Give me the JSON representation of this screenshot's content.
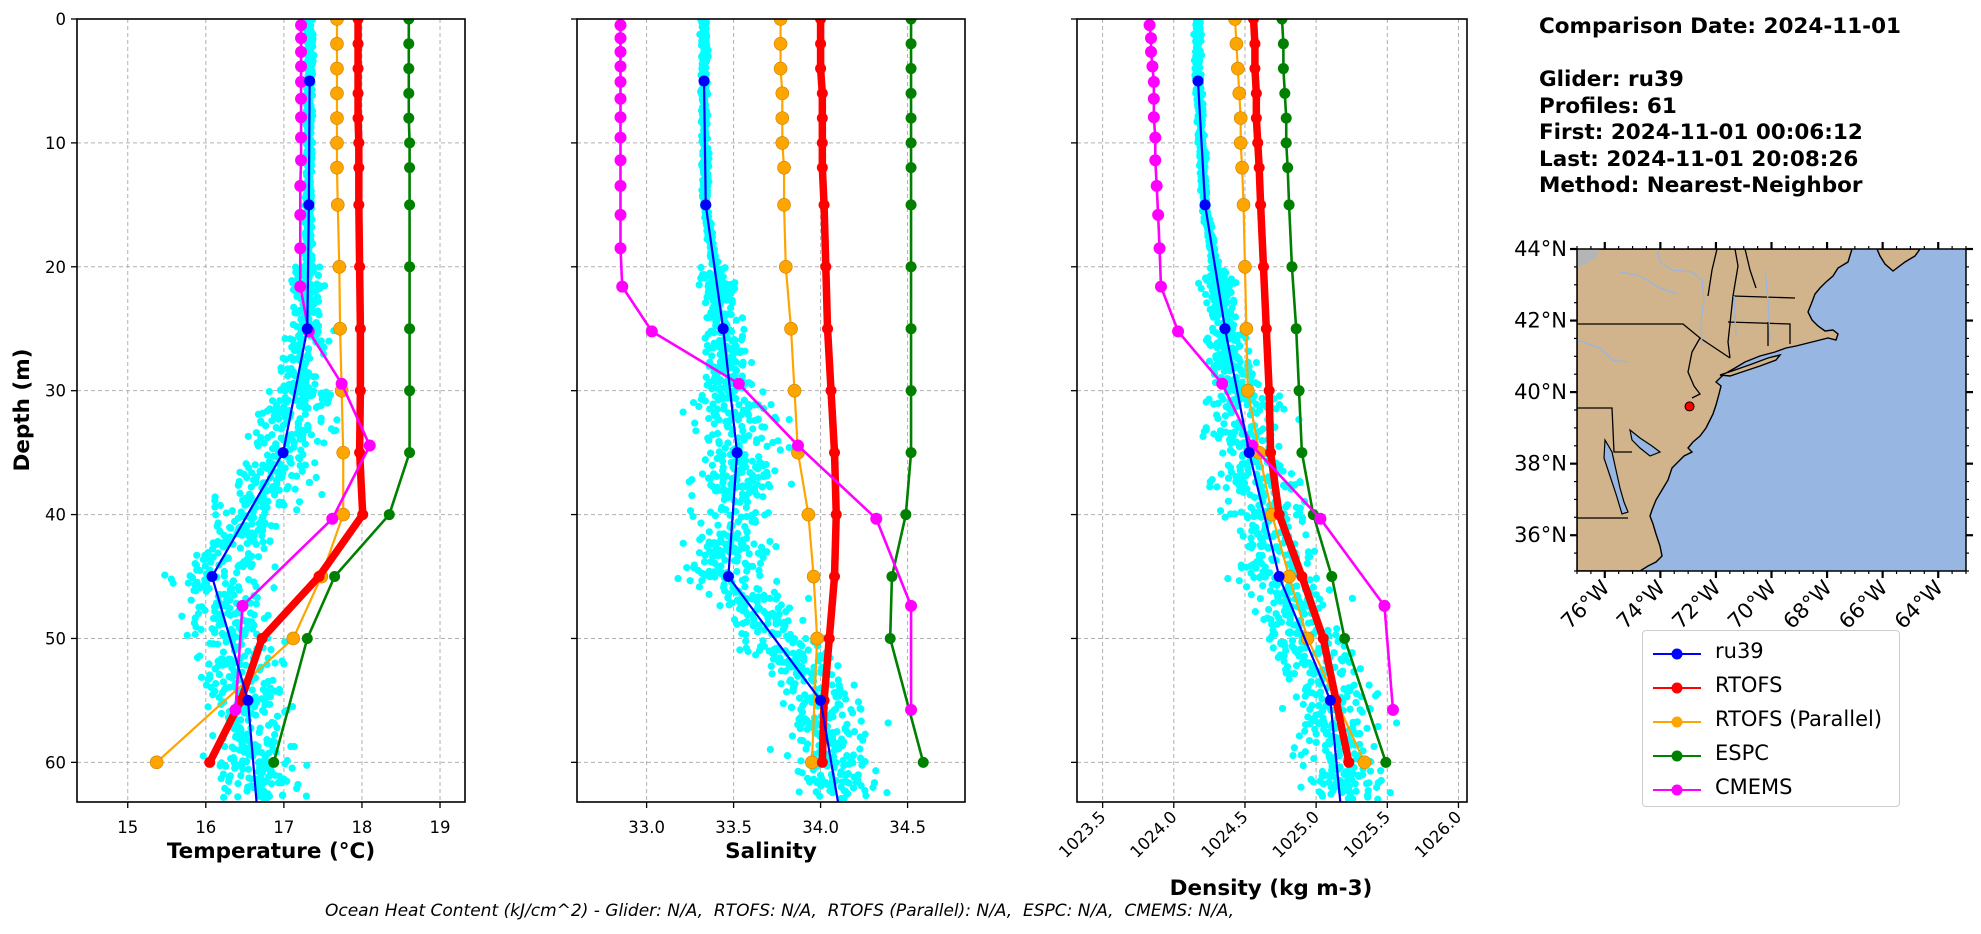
{
  "chart_data": [
    {
      "type": "line",
      "panel": "temperature",
      "xlabel": "Temperature (°C)",
      "ylabel": "Depth (m)",
      "xlim": [
        14.35,
        19.32
      ],
      "ylim": [
        63.2,
        0
      ],
      "xticks": [
        15,
        16,
        17,
        18,
        19
      ],
      "xtick_labels": [
        "15",
        "16",
        "17",
        "18",
        "19"
      ],
      "yticks": [
        0,
        10,
        20,
        30,
        40,
        50,
        60
      ],
      "ytick_labels": [
        "0",
        "10",
        "20",
        "30",
        "40",
        "50",
        "60"
      ],
      "grid": true,
      "series": [
        {
          "name": "ru39",
          "depth": [
            5,
            15,
            25,
            35,
            45,
            55,
            63.2
          ],
          "values": [
            17.33,
            17.32,
            17.3,
            16.99,
            16.08,
            16.54,
            16.65
          ],
          "marker_count": 6
        },
        {
          "name": "RTOFS",
          "depth": [
            0,
            2,
            4,
            6,
            8,
            10,
            12,
            15,
            20,
            25,
            30,
            35,
            40,
            45,
            50,
            55,
            60
          ],
          "values": [
            17.95,
            17.95,
            17.95,
            17.95,
            17.95,
            17.96,
            17.96,
            17.96,
            17.97,
            17.98,
            17.98,
            17.97,
            18.01,
            17.45,
            16.72,
            16.45,
            16.05
          ]
        },
        {
          "name": "RTOFS (Parallel)",
          "depth": [
            0,
            2,
            4,
            6,
            8,
            10,
            12,
            15,
            20,
            25,
            30,
            35,
            40,
            45,
            50,
            60
          ],
          "values": [
            17.68,
            17.68,
            17.68,
            17.68,
            17.68,
            17.68,
            17.68,
            17.69,
            17.71,
            17.72,
            17.74,
            17.76,
            17.76,
            17.48,
            17.12,
            15.37
          ]
        },
        {
          "name": "ESPC",
          "depth": [
            0,
            2,
            4,
            6,
            8,
            10,
            12,
            15,
            20,
            25,
            30,
            35,
            40,
            45,
            50,
            60
          ],
          "values": [
            18.6,
            18.6,
            18.6,
            18.6,
            18.6,
            18.61,
            18.61,
            18.61,
            18.61,
            18.61,
            18.61,
            18.61,
            18.35,
            17.65,
            17.3,
            16.87
          ]
        },
        {
          "name": "CMEMS",
          "depth": [
            0.49,
            1.54,
            2.65,
            3.82,
            5.08,
            6.44,
            7.93,
            9.57,
            11.4,
            13.47,
            15.81,
            18.5,
            21.6,
            25.21,
            29.44,
            34.43,
            40.34,
            47.37,
            55.76
          ],
          "values": [
            17.22,
            17.22,
            17.22,
            17.22,
            17.22,
            17.22,
            17.22,
            17.22,
            17.22,
            17.21,
            17.21,
            17.21,
            17.21,
            17.32,
            17.74,
            18.1,
            17.62,
            16.47,
            16.38
          ]
        }
      ],
      "scatter_name": "ru39 profiles (all)"
    },
    {
      "type": "line",
      "panel": "salinity",
      "xlabel": "Salinity",
      "ylabel": "",
      "xlim": [
        32.6,
        34.83
      ],
      "ylim": [
        63.2,
        0
      ],
      "xticks": [
        33.0,
        33.5,
        34.0,
        34.5
      ],
      "xtick_labels": [
        "33.0",
        "33.5",
        "34.0",
        "34.5"
      ],
      "yticks": [
        0,
        10,
        20,
        30,
        40,
        50,
        60
      ],
      "grid": true,
      "series": [
        {
          "name": "ru39",
          "depth": [
            5,
            15,
            25,
            35,
            45,
            55,
            63.2
          ],
          "values": [
            33.33,
            33.34,
            33.44,
            33.52,
            33.47,
            34.0,
            34.1
          ],
          "marker_count": 6
        },
        {
          "name": "RTOFS",
          "depth": [
            0,
            2,
            4,
            6,
            8,
            10,
            12,
            15,
            20,
            25,
            30,
            35,
            40,
            45,
            50,
            55,
            60
          ],
          "values": [
            34.0,
            34.0,
            34.0,
            34.01,
            34.01,
            34.01,
            34.01,
            34.02,
            34.03,
            34.04,
            34.06,
            34.08,
            34.09,
            34.08,
            34.05,
            34.02,
            34.01
          ]
        },
        {
          "name": "RTOFS (Parallel)",
          "depth": [
            0,
            2,
            4,
            6,
            8,
            10,
            12,
            15,
            20,
            25,
            30,
            35,
            40,
            45,
            50,
            60
          ],
          "values": [
            33.77,
            33.77,
            33.77,
            33.78,
            33.78,
            33.78,
            33.79,
            33.79,
            33.8,
            33.83,
            33.85,
            33.87,
            33.93,
            33.96,
            33.98,
            33.95
          ]
        },
        {
          "name": "ESPC",
          "depth": [
            0,
            2,
            4,
            6,
            8,
            10,
            12,
            15,
            20,
            25,
            30,
            35,
            40,
            45,
            50,
            60
          ],
          "values": [
            34.52,
            34.52,
            34.52,
            34.52,
            34.52,
            34.52,
            34.52,
            34.52,
            34.52,
            34.52,
            34.52,
            34.52,
            34.49,
            34.41,
            34.4,
            34.59
          ]
        },
        {
          "name": "CMEMS",
          "depth": [
            0.49,
            1.54,
            2.65,
            3.82,
            5.08,
            6.44,
            7.93,
            9.57,
            11.4,
            13.47,
            15.81,
            18.5,
            21.6,
            25.21,
            29.44,
            34.43,
            40.34,
            47.37,
            55.76
          ],
          "values": [
            32.85,
            32.85,
            32.85,
            32.85,
            32.85,
            32.85,
            32.85,
            32.85,
            32.85,
            32.85,
            32.85,
            32.85,
            32.86,
            33.03,
            33.53,
            33.87,
            34.32,
            34.52,
            34.52
          ]
        }
      ]
    },
    {
      "type": "line",
      "panel": "density",
      "xlabel": "Density (kg m-3)",
      "ylabel": "",
      "xlim": [
        1023.32,
        1026.06
      ],
      "ylim": [
        63.2,
        0
      ],
      "xticks": [
        1023.5,
        1024.0,
        1024.5,
        1025.0,
        1025.5,
        1026.0
      ],
      "xtick_labels": [
        "1023.5",
        "1024.0",
        "1024.5",
        "1025.0",
        "1025.5",
        "1026.0"
      ],
      "yticks": [
        0,
        10,
        20,
        30,
        40,
        50,
        60
      ],
      "grid": true,
      "series": [
        {
          "name": "ru39",
          "depth": [
            5,
            15,
            25,
            35,
            45,
            55,
            63.2
          ],
          "values": [
            1024.17,
            1024.22,
            1024.36,
            1024.53,
            1024.74,
            1025.1,
            1025.17
          ],
          "marker_count": 6
        },
        {
          "name": "RTOFS",
          "depth": [
            0,
            2,
            4,
            6,
            8,
            10,
            12,
            15,
            20,
            25,
            30,
            35,
            40,
            45,
            50,
            55,
            60
          ],
          "values": [
            1024.56,
            1024.57,
            1024.57,
            1024.58,
            1024.58,
            1024.59,
            1024.6,
            1024.61,
            1024.63,
            1024.65,
            1024.67,
            1024.68,
            1024.74,
            1024.9,
            1025.05,
            1025.14,
            1025.23
          ]
        },
        {
          "name": "RTOFS (Parallel)",
          "depth": [
            0,
            2,
            4,
            6,
            8,
            10,
            12,
            15,
            20,
            25,
            30,
            35,
            40,
            45,
            50,
            60
          ],
          "values": [
            1024.43,
            1024.44,
            1024.45,
            1024.46,
            1024.47,
            1024.47,
            1024.48,
            1024.49,
            1024.5,
            1024.51,
            1024.52,
            1024.6,
            1024.69,
            1024.81,
            1024.94,
            1025.34
          ]
        },
        {
          "name": "ESPC",
          "depth": [
            0,
            2,
            4,
            6,
            8,
            10,
            12,
            15,
            20,
            25,
            30,
            35,
            40,
            45,
            50,
            60
          ],
          "values": [
            1024.76,
            1024.77,
            1024.77,
            1024.78,
            1024.79,
            1024.79,
            1024.8,
            1024.81,
            1024.83,
            1024.86,
            1024.88,
            1024.9,
            1024.98,
            1025.11,
            1025.2,
            1025.49
          ]
        },
        {
          "name": "CMEMS",
          "depth": [
            0.49,
            1.54,
            2.65,
            3.82,
            5.08,
            6.44,
            7.93,
            9.57,
            11.4,
            13.47,
            15.81,
            18.5,
            21.6,
            25.21,
            29.44,
            34.43,
            40.34,
            47.37,
            55.76
          ],
          "values": [
            1023.83,
            1023.84,
            1023.84,
            1023.85,
            1023.86,
            1023.86,
            1023.86,
            1023.87,
            1023.87,
            1023.88,
            1023.89,
            1023.9,
            1023.91,
            1024.03,
            1024.34,
            1024.55,
            1025.03,
            1025.48,
            1025.54
          ]
        }
      ]
    },
    {
      "type": "scatter",
      "panel": "map",
      "title": "",
      "lon_range": [
        -77.0,
        -63.0
      ],
      "lat_range": [
        35.0,
        44.0
      ],
      "xtick_labels": [
        "76°W",
        "74°W",
        "72°W",
        "70°W",
        "68°W",
        "66°W",
        "64°W"
      ],
      "xticks": [
        -76,
        -74,
        -72,
        -70,
        -68,
        -66,
        -64
      ],
      "ytick_labels": [
        "36°N",
        "38°N",
        "40°N",
        "42°N",
        "44°N"
      ],
      "yticks": [
        36,
        38,
        40,
        42,
        44
      ],
      "points": [
        {
          "name": "ru39 location",
          "lon": -72.95,
          "lat": 39.6
        }
      ],
      "land_color": "#d2b48c",
      "ocean_color": "#97b6e1"
    }
  ],
  "colors": {
    "ru39": "#0000ff",
    "RTOFS": "#ff0000",
    "RTOFS (Parallel)": "#ffa500",
    "ESPC": "#008000",
    "CMEMS": "#ff00ff",
    "scatter": "#00ffff",
    "grid": "#b0b0b0"
  },
  "info": {
    "comparison_date": "Comparison Date: 2024-11-01",
    "glider": "Glider: ru39",
    "profiles": "Profiles: 61",
    "first": "First: 2024-11-01 00:06:12",
    "last": "Last: 2024-11-01 20:08:26",
    "method": "Method: Nearest-Neighbor"
  },
  "legend": {
    "location": "below-map",
    "entries": [
      "ru39",
      "RTOFS",
      "RTOFS (Parallel)",
      "ESPC",
      "CMEMS"
    ]
  },
  "footer": "Ocean Heat Content (kJ/cm^2) - Glider: N/A,  RTOFS: N/A,  RTOFS (Parallel): N/A,  ESPC: N/A,  CMEMS: N/A,"
}
